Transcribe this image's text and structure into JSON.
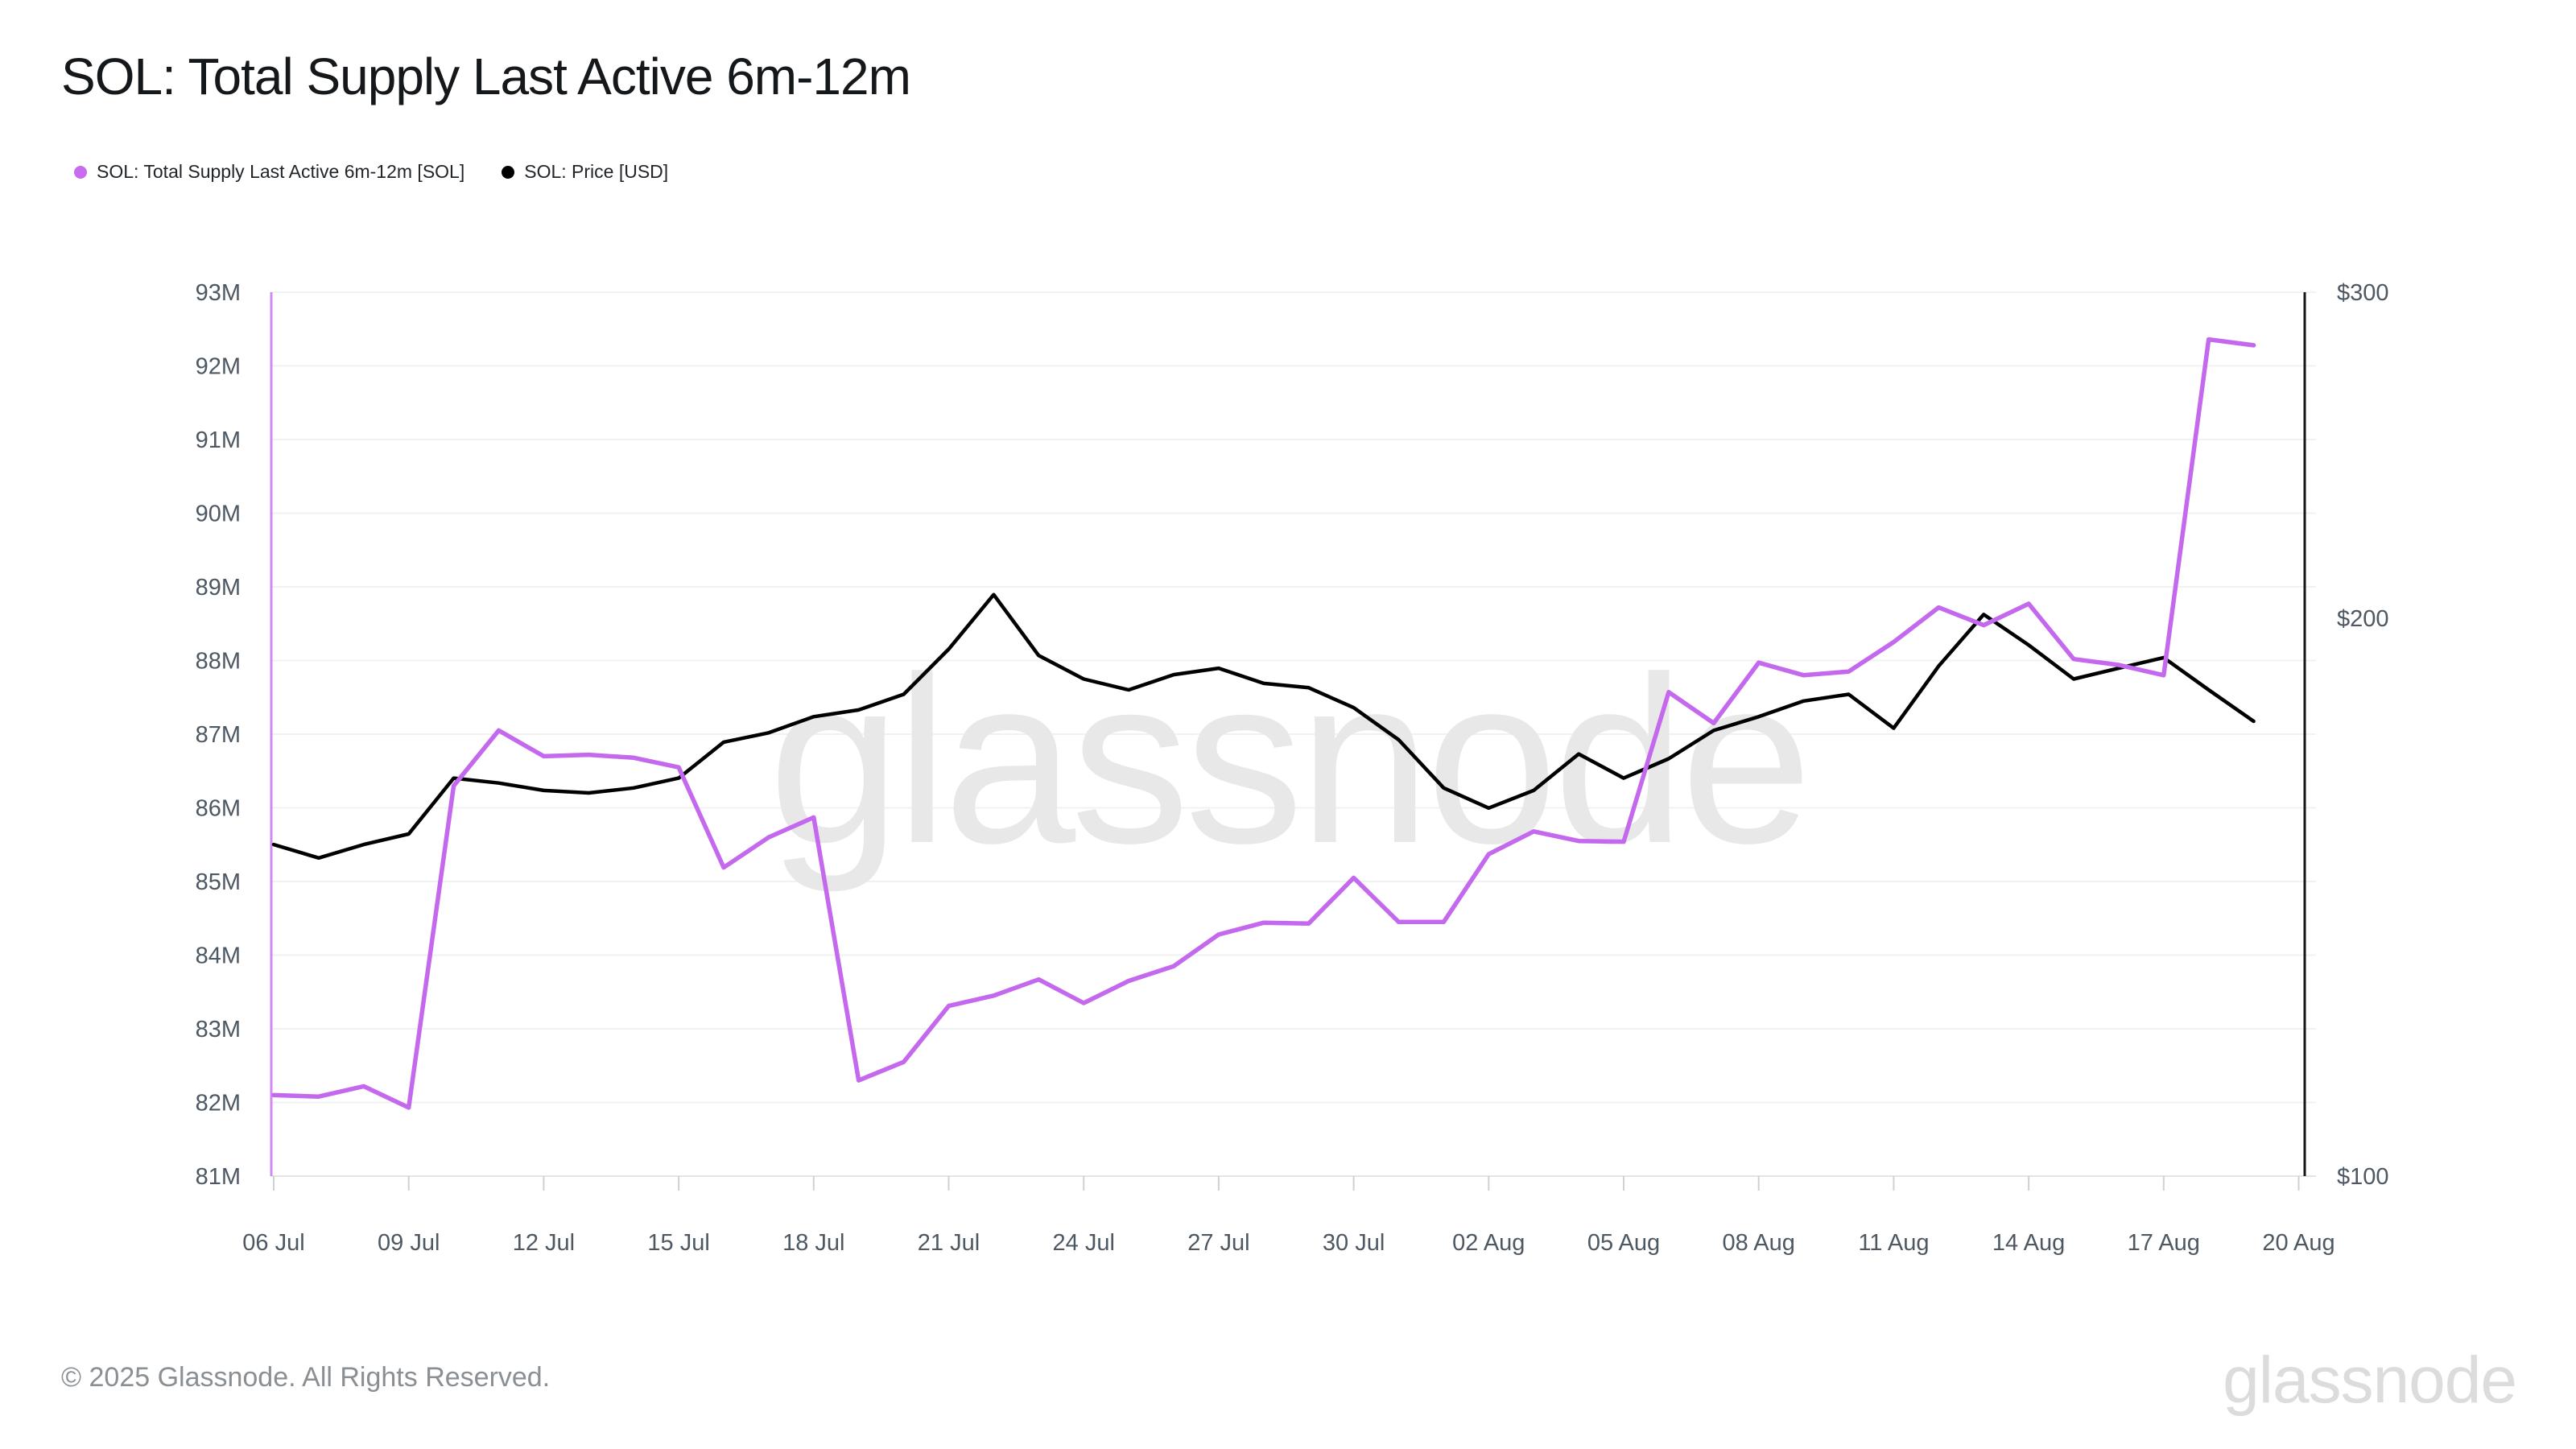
{
  "title": "SOL: Total Supply Last Active 6m-12m",
  "legend": {
    "items": [
      {
        "label": "SOL: Total Supply Last Active 6m-12m [SOL]",
        "color": "#c76cf0"
      },
      {
        "label": "SOL: Price [USD]",
        "color": "#000000"
      }
    ]
  },
  "watermarks": {
    "center": "glassnode",
    "corner": "glassnode"
  },
  "footer": {
    "copyright": "© 2025 Glassnode. All Rights Reserved."
  },
  "chart_data": {
    "type": "line",
    "title": "SOL: Total Supply Last Active 6m-12m",
    "grid": "horizontal",
    "legend_position": "top-left",
    "x_dates": [
      "06 Jul",
      "07 Jul",
      "08 Jul",
      "09 Jul",
      "10 Jul",
      "11 Jul",
      "12 Jul",
      "13 Jul",
      "14 Jul",
      "15 Jul",
      "16 Jul",
      "17 Jul",
      "18 Jul",
      "19 Jul",
      "20 Jul",
      "21 Jul",
      "22 Jul",
      "23 Jul",
      "24 Jul",
      "25 Jul",
      "26 Jul",
      "27 Jul",
      "28 Jul",
      "29 Jul",
      "30 Jul",
      "31 Jul",
      "01 Aug",
      "02 Aug",
      "03 Aug",
      "04 Aug",
      "05 Aug",
      "06 Aug",
      "07 Aug",
      "08 Aug",
      "09 Aug",
      "10 Aug",
      "11 Aug",
      "12 Aug",
      "13 Aug",
      "14 Aug",
      "15 Aug",
      "16 Aug",
      "17 Aug",
      "18 Aug",
      "19 Aug"
    ],
    "x_tick_labels": [
      "06 Jul",
      "09 Jul",
      "12 Jul",
      "15 Jul",
      "18 Jul",
      "21 Jul",
      "24 Jul",
      "27 Jul",
      "30 Jul",
      "02 Aug",
      "05 Aug",
      "08 Aug",
      "11 Aug",
      "14 Aug",
      "17 Aug",
      "20 Aug"
    ],
    "y_left": {
      "unit": "SOL (millions)",
      "scale": "linear",
      "range": [
        81,
        93
      ],
      "tick_values": [
        93,
        92,
        91,
        90,
        89,
        88,
        87,
        86,
        85,
        84,
        83,
        82,
        81
      ],
      "tick_labels": [
        "93M",
        "92M",
        "91M",
        "90M",
        "89M",
        "88M",
        "87M",
        "86M",
        "85M",
        "84M",
        "83M",
        "82M",
        "81M"
      ]
    },
    "y_right": {
      "unit": "USD",
      "scale": "log",
      "range": [
        100,
        300
      ],
      "tick_values": [
        300,
        200,
        100
      ],
      "tick_labels": [
        "$300",
        "$200",
        "$100"
      ]
    },
    "series": [
      {
        "name": "SOL: Total Supply Last Active 6m-12m [SOL]",
        "axis": "left",
        "color": "#c468ee",
        "unit": "millions of SOL",
        "values": [
          82.1,
          82.08,
          82.22,
          81.93,
          86.3,
          87.05,
          86.7,
          86.72,
          86.68,
          86.55,
          85.19,
          85.6,
          85.87,
          82.3,
          82.55,
          83.31,
          83.45,
          83.67,
          83.35,
          83.65,
          83.85,
          84.28,
          84.44,
          84.43,
          85.05,
          84.45,
          84.45,
          85.37,
          85.68,
          85.55,
          85.54,
          87.57,
          87.15,
          87.97,
          87.8,
          87.85,
          88.25,
          88.72,
          88.48,
          88.77,
          88.02,
          87.94,
          87.8,
          92.36,
          92.28
        ]
      },
      {
        "name": "SOL: Price [USD]",
        "axis": "right",
        "color": "#000000",
        "unit": "USD",
        "values": [
          151,
          148.5,
          151,
          153,
          164,
          163,
          161.5,
          161,
          162,
          164,
          171.5,
          173.5,
          177,
          178.5,
          182,
          192.5,
          206,
          191,
          185.5,
          183,
          186.5,
          188,
          184.5,
          183.5,
          179,
          172,
          162,
          158,
          161.5,
          169,
          164,
          168,
          174,
          177,
          180.5,
          182,
          174.5,
          188.5,
          201,
          193.5,
          185.5,
          188,
          190.5,
          183,
          176
        ]
      }
    ]
  }
}
